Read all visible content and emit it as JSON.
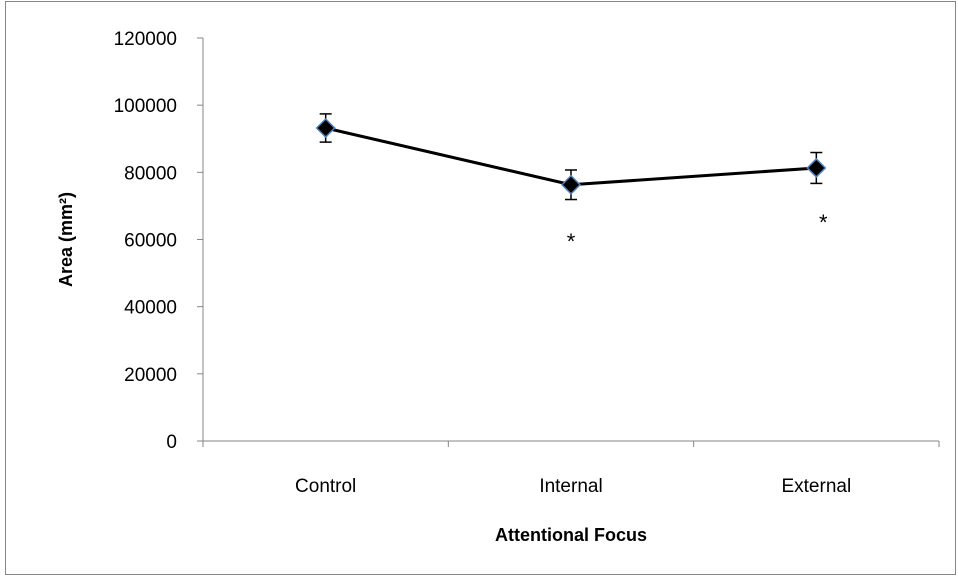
{
  "chart_data": {
    "type": "line",
    "title": "",
    "xlabel": "Attentional Focus",
    "ylabel": "Area (mm²)",
    "categories": [
      "Control",
      "Internal",
      "External"
    ],
    "series": [
      {
        "values": [
          93200,
          76300,
          81300
        ],
        "error": [
          4200,
          4400,
          4600
        ]
      }
    ],
    "ylim": [
      0,
      120000
    ],
    "yticks": [
      "0",
      "20000",
      "40000",
      "60000",
      "80000",
      "100000",
      "120000"
    ],
    "annotations": [
      "",
      "*",
      "*"
    ],
    "grid": false,
    "legend": "none",
    "line_color": "#000000",
    "marker_color": "#000000",
    "marker_edge_color": "#4f81bd"
  }
}
